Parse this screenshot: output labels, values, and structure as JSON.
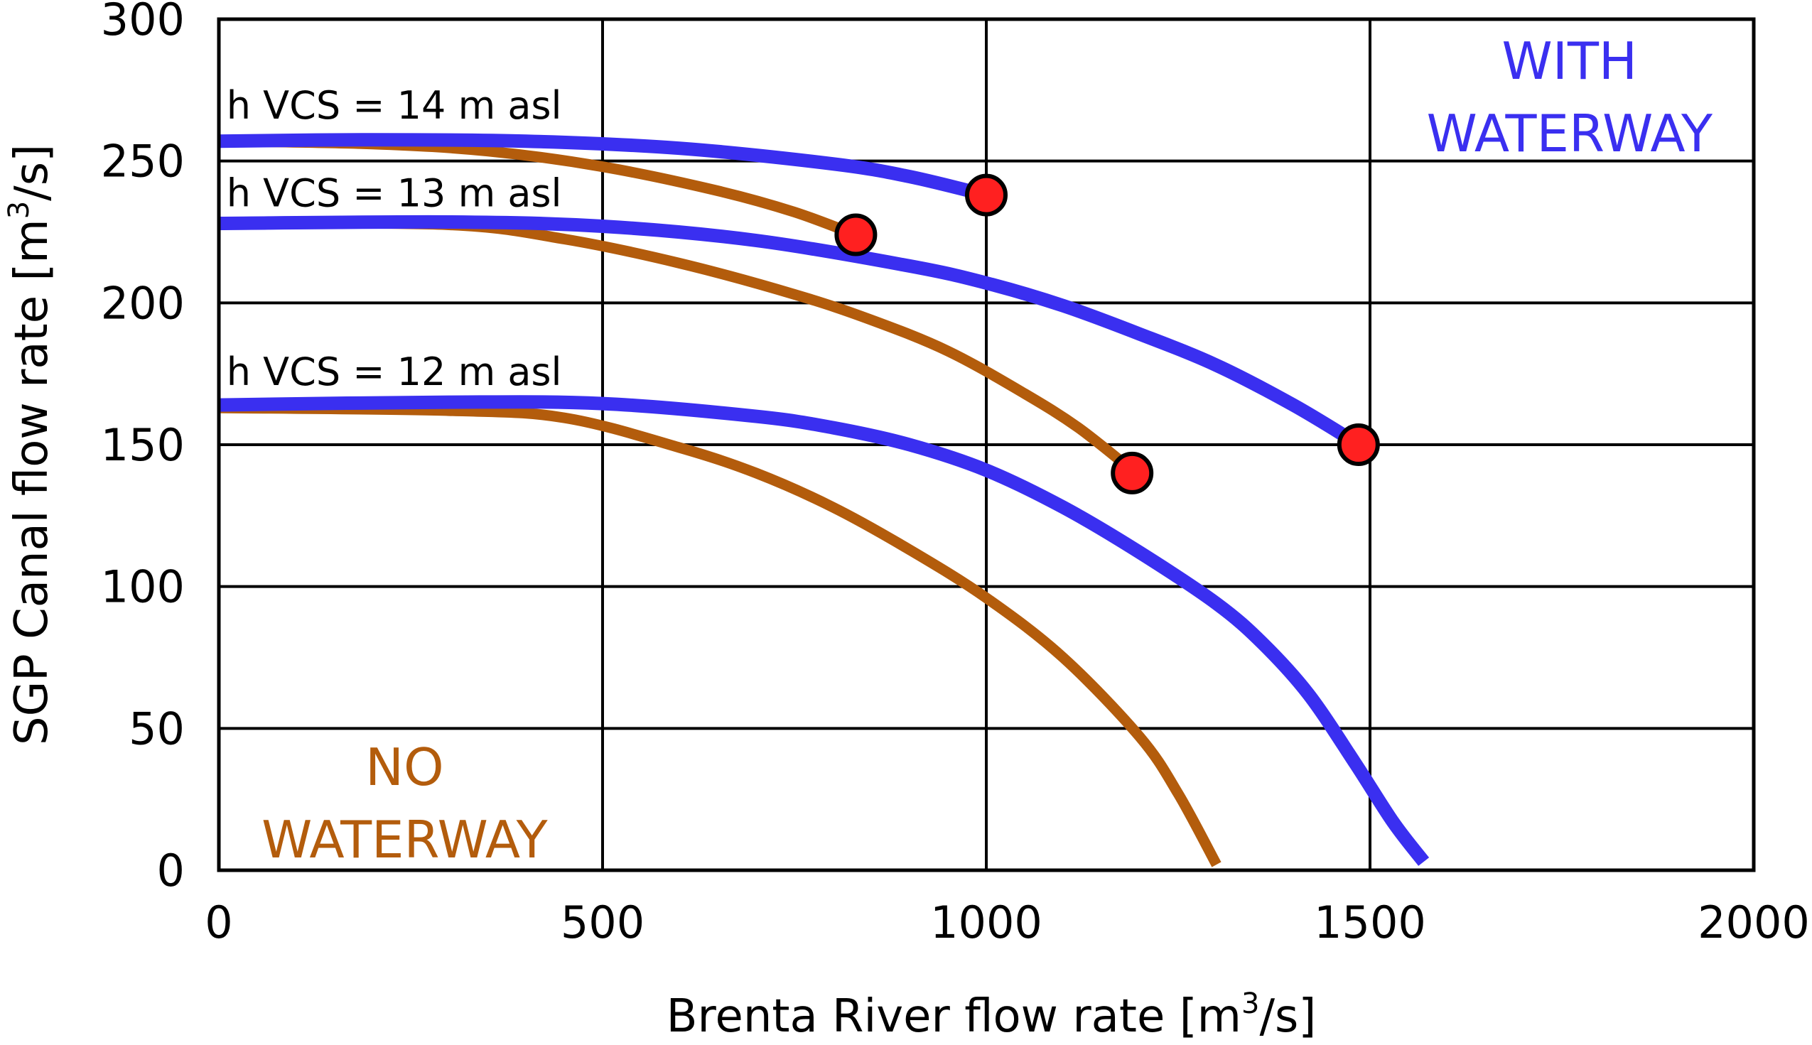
{
  "chart_data": {
    "type": "line",
    "title": "",
    "xlabel": "Brenta River flow rate [m",
    "xlabel_sup": "3",
    "xlabel_tail": "/s]",
    "ylabel": "SGP Canal flow rate [m",
    "ylabel_sup": "3",
    "ylabel_tail": "/s]",
    "xlim": [
      0,
      2000
    ],
    "ylim": [
      0,
      300
    ],
    "xticks": [
      0,
      500,
      1000,
      1500,
      2000
    ],
    "yticks": [
      0,
      50,
      100,
      150,
      200,
      250,
      300
    ],
    "grid": true,
    "colors": {
      "with_waterway": "#3a2ff0",
      "no_waterway": "#b35c0c",
      "marker": "#ff2020"
    },
    "curve_labels": [
      {
        "text": "h VCS = 14 m asl",
        "at": [
          10,
          265
        ]
      },
      {
        "text": "h VCS = 13 m asl",
        "at": [
          10,
          234
        ]
      },
      {
        "text": "h VCS = 12 m asl",
        "at": [
          10,
          171
        ]
      }
    ],
    "annotations": [
      {
        "lines": [
          "WITH",
          "WATERWAY"
        ],
        "color": "#3a2ff0",
        "at": [
          1760,
          279
        ]
      },
      {
        "lines": [
          "NO",
          "WATERWAY"
        ],
        "color": "#b35c0c",
        "at": [
          242,
          30
        ]
      }
    ],
    "series": [
      {
        "name": "h VCS = 14 m asl, with waterway",
        "group": "with_waterway",
        "x": [
          0,
          200,
          400,
          600,
          800,
          900,
          1000
        ],
        "y": [
          257,
          257.5,
          257,
          254.5,
          249,
          244.5,
          238
        ]
      },
      {
        "name": "h VCS = 14 m asl, no waterway",
        "group": "no_waterway",
        "x": [
          0,
          200,
          350,
          500,
          650,
          750,
          830
        ],
        "y": [
          257,
          256,
          253.5,
          248,
          239.5,
          232,
          224
        ]
      },
      {
        "name": "h VCS = 13 m asl, with waterway",
        "group": "with_waterway",
        "x": [
          0,
          300,
          500,
          700,
          900,
          1000,
          1100,
          1200,
          1300,
          1400,
          1480
        ],
        "y": [
          228,
          228.5,
          227,
          222,
          213,
          207,
          199,
          189,
          178,
          164,
          151
        ]
      },
      {
        "name": "h VCS = 13 m asl, no waterway",
        "group": "no_waterway",
        "x": [
          0,
          300,
          450,
          600,
          750,
          850,
          950,
          1050,
          1120,
          1190
        ],
        "y": [
          228,
          227.5,
          222.5,
          214,
          203,
          194,
          183,
          168,
          156,
          141
        ]
      },
      {
        "name": "h VCS = 12 m asl, with waterway",
        "group": "with_waterway",
        "x": [
          0,
          300,
          500,
          700,
          800,
          900,
          1000,
          1100,
          1200,
          1300,
          1360,
          1420,
          1480,
          1530,
          1570
        ],
        "y": [
          164,
          165,
          164.5,
          160,
          156,
          150,
          141,
          128,
          112,
          94,
          80,
          62,
          38,
          17,
          3
        ]
      },
      {
        "name": "h VCS = 12 m asl, no waterway",
        "group": "no_waterway",
        "x": [
          0,
          300,
          450,
          600,
          700,
          800,
          900,
          1000,
          1100,
          1200,
          1250,
          1300
        ],
        "y": [
          163,
          162,
          159.5,
          149,
          140,
          128,
          113,
          96,
          75,
          47,
          27,
          2
        ]
      }
    ],
    "markers": [
      {
        "x": 1000,
        "y": 238
      },
      {
        "x": 830,
        "y": 224
      },
      {
        "x": 1190,
        "y": 140
      },
      {
        "x": 1485,
        "y": 150
      }
    ]
  }
}
